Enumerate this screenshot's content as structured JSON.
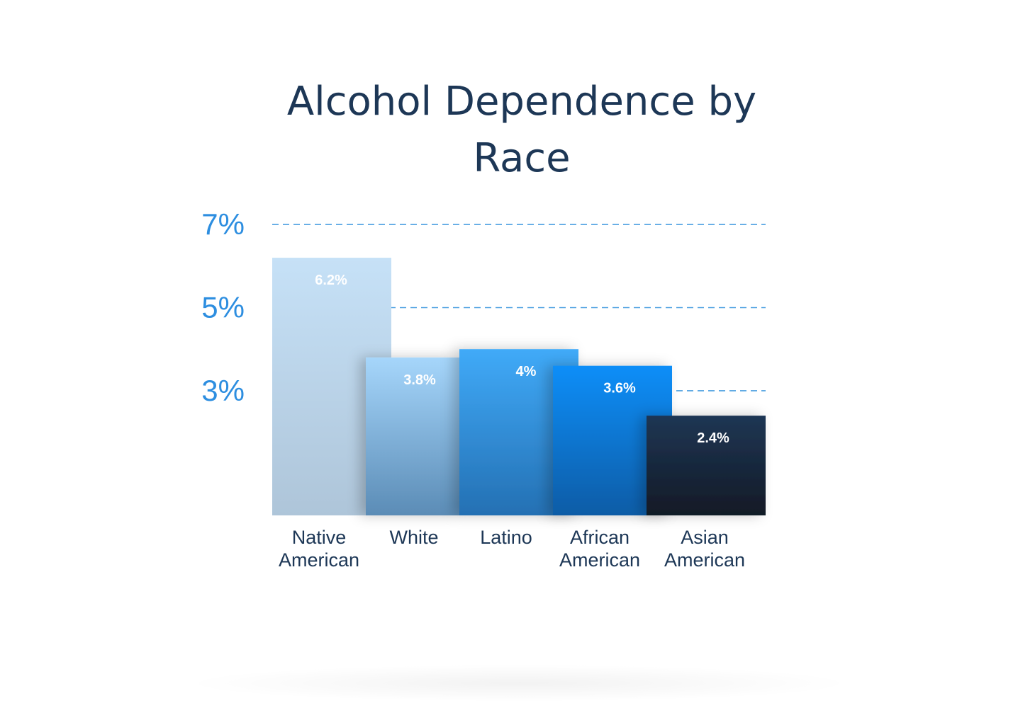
{
  "chart_data": {
    "type": "bar",
    "title": "Alcohol Dependence by Race",
    "title_lines": [
      "Alcohol Dependence by",
      "Race"
    ],
    "categories": [
      "Native American",
      "White",
      "Latino",
      "African American",
      "Asian American"
    ],
    "category_lines": [
      [
        "Native",
        "American"
      ],
      [
        "White"
      ],
      [
        "Latino"
      ],
      [
        "African",
        "American"
      ],
      [
        "Asian",
        "American"
      ]
    ],
    "values": [
      6.2,
      3.8,
      4,
      3.6,
      2.4
    ],
    "value_labels": [
      "6.2%",
      "3.8%",
      "4%",
      "3.6%",
      "2.4%"
    ],
    "y_ticks": [
      3,
      5,
      7
    ],
    "y_tick_labels": [
      "3%",
      "5%",
      "7%"
    ],
    "grid": "dashed",
    "xlabel": "",
    "ylabel": "",
    "bar_colors": [
      [
        "#c6e1f7",
        "#aec5d9"
      ],
      [
        "#a6d6fb",
        "#5b8cb6"
      ],
      [
        "#40aaf8",
        "#2470b3"
      ],
      [
        "#0a8ef8",
        "#0b5ca6"
      ],
      [
        "#1f3654",
        "#111a26"
      ]
    ],
    "colors": {
      "title": "#1d3756",
      "tick": "#2d8ee0",
      "grid": "#4a9fe0",
      "category": "#1d3756",
      "value_label": "#ffffff"
    }
  }
}
